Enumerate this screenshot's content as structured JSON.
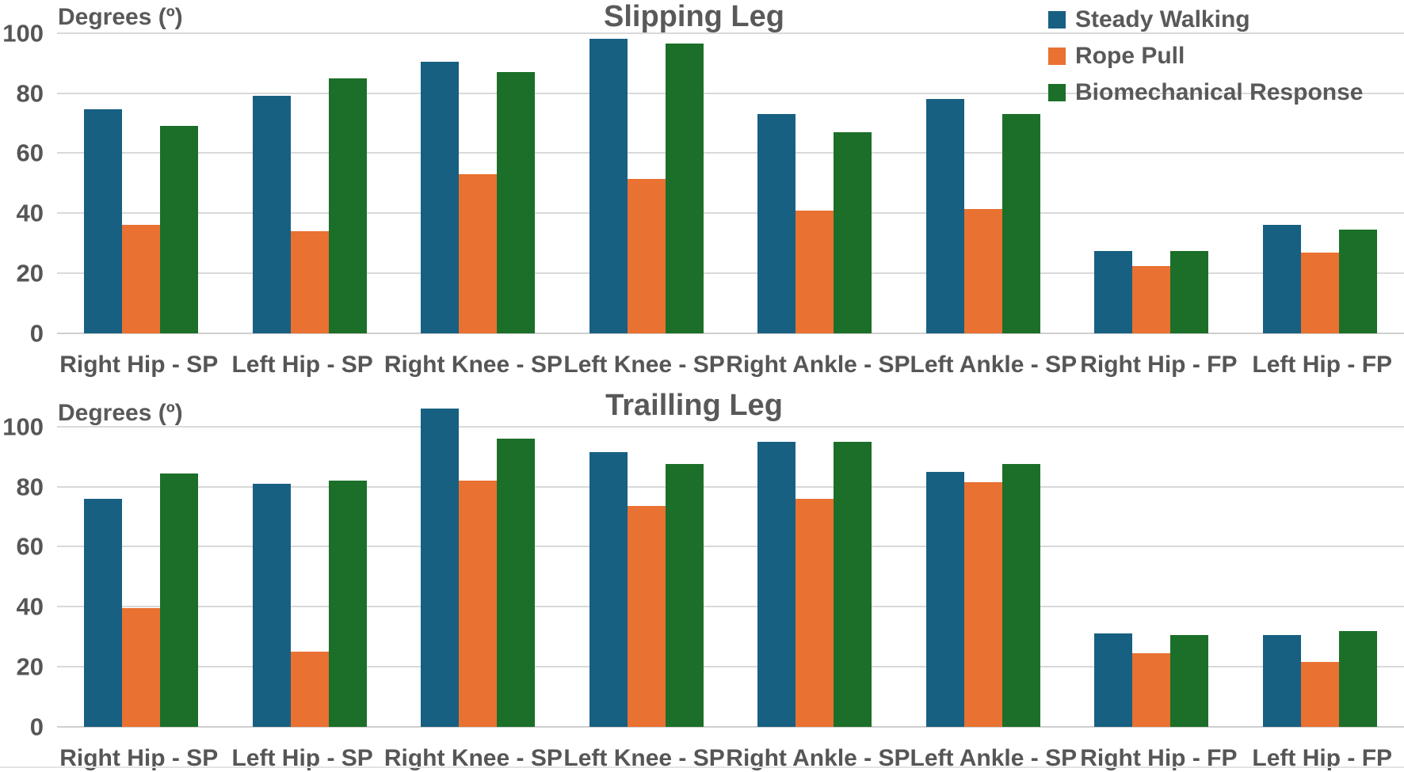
{
  "colors": {
    "steady_walking": "#176082",
    "rope_pull": "#E97132",
    "biomechanical_response": "#1C6F28",
    "gridline": "#D9D9D9",
    "text": "#595959"
  },
  "legend": {
    "position": "top-right",
    "items": [
      {
        "label": "Steady Walking",
        "color": "#176082"
      },
      {
        "label": "Rope Pull",
        "color": "#E97132"
      },
      {
        "label": "Biomechanical Response",
        "color": "#1C6F28"
      }
    ]
  },
  "chart_data": [
    {
      "type": "bar",
      "title": "Slipping Leg",
      "ylabel": "Degrees (º)",
      "xlabel": "",
      "grid": true,
      "ymax": 111,
      "yticks": [
        0,
        20,
        40,
        60,
        80,
        100
      ],
      "categories": [
        "Right Hip - SP",
        "Left Hip - SP",
        "Right Knee - SP",
        "Left Knee - SP",
        "Right Ankle - SP",
        "Left Ankle - SP",
        "Right Hip - FP",
        "Left Hip - FP"
      ],
      "series": [
        {
          "name": "Steady Walking",
          "color": "#176082",
          "values": [
            74.5,
            79,
            90.5,
            98,
            73,
            78,
            27.5,
            36
          ]
        },
        {
          "name": "Rope Pull",
          "color": "#E97132",
          "values": [
            36,
            34,
            53,
            51.5,
            41,
            41.5,
            22.5,
            27
          ]
        },
        {
          "name": "Biomechanical Response",
          "color": "#1C6F28",
          "values": [
            69,
            85,
            87,
            96.5,
            67,
            73,
            27.5,
            34.5
          ]
        }
      ]
    },
    {
      "type": "bar",
      "title": "Trailling Leg",
      "ylabel": "Degrees (º)",
      "xlabel": "",
      "grid": true,
      "ymax": 111,
      "yticks": [
        0,
        20,
        40,
        60,
        80,
        100
      ],
      "categories": [
        "Right Hip - SP",
        "Left Hip - SP",
        "Right Knee - SP",
        "Left Knee - SP",
        "Right Ankle - SP",
        "Left Ankle - SP",
        "Right Hip - FP",
        "Left Hip - FP"
      ],
      "series": [
        {
          "name": "Steady Walking",
          "color": "#176082",
          "values": [
            76,
            81,
            106,
            91.5,
            95,
            85,
            31,
            30.5
          ]
        },
        {
          "name": "Rope Pull",
          "color": "#E97132",
          "values": [
            39.5,
            25,
            82,
            73.5,
            76,
            81.5,
            24.5,
            21.5
          ]
        },
        {
          "name": "Biomechanical Response",
          "color": "#1C6F28",
          "values": [
            84.5,
            82,
            96,
            87.5,
            95,
            87.5,
            30.5,
            32
          ]
        }
      ]
    }
  ]
}
